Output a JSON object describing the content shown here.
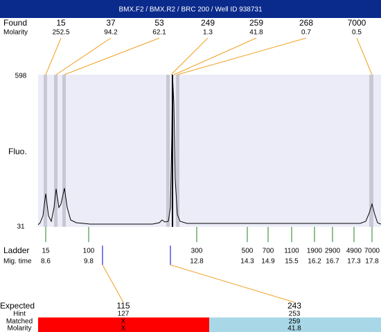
{
  "header": {
    "title": "BMX.F2 / BMX.R2 / BRC 200 / Well ID 938731"
  },
  "found": {
    "label": "Found",
    "molarity_label": "Molarity",
    "peaks": [
      {
        "size": "15",
        "molarity": "252.5"
      },
      {
        "size": "37",
        "molarity": "94.2"
      },
      {
        "size": "53",
        "molarity": "62.1"
      },
      {
        "size": "249",
        "molarity": "1.3"
      },
      {
        "size": "259",
        "molarity": "41.8"
      },
      {
        "size": "268",
        "molarity": "0.7"
      },
      {
        "size": "7000",
        "molarity": "0.5"
      }
    ]
  },
  "axis": {
    "label": "Fluo.",
    "max": "598",
    "min": "31"
  },
  "ladder": {
    "label": "Ladder",
    "mig_time_label": "Mig. time",
    "items": [
      {
        "size": "15",
        "time": "8.6"
      },
      {
        "size": "100",
        "time": "9.8"
      },
      {
        "size": "300",
        "time": "12.8"
      },
      {
        "size": "500",
        "time": "14.3"
      },
      {
        "size": "700",
        "time": "14.9"
      },
      {
        "size": "1100",
        "time": "15.5"
      },
      {
        "size": "1900",
        "time": "16.2"
      },
      {
        "size": "2900",
        "time": "16.7"
      },
      {
        "size": "4900",
        "time": "17.3"
      },
      {
        "size": "7000",
        "time": "17.8"
      }
    ]
  },
  "expected": {
    "label": "Expected",
    "hint_label": "Hint",
    "matched_label": "Matched",
    "molarity_label": "Molarity",
    "items": [
      {
        "expected": "115",
        "hint": "127",
        "matched": "X",
        "molarity": "X"
      },
      {
        "expected": "243",
        "hint": "253",
        "matched": "259",
        "molarity": "41.8"
      }
    ]
  }
}
